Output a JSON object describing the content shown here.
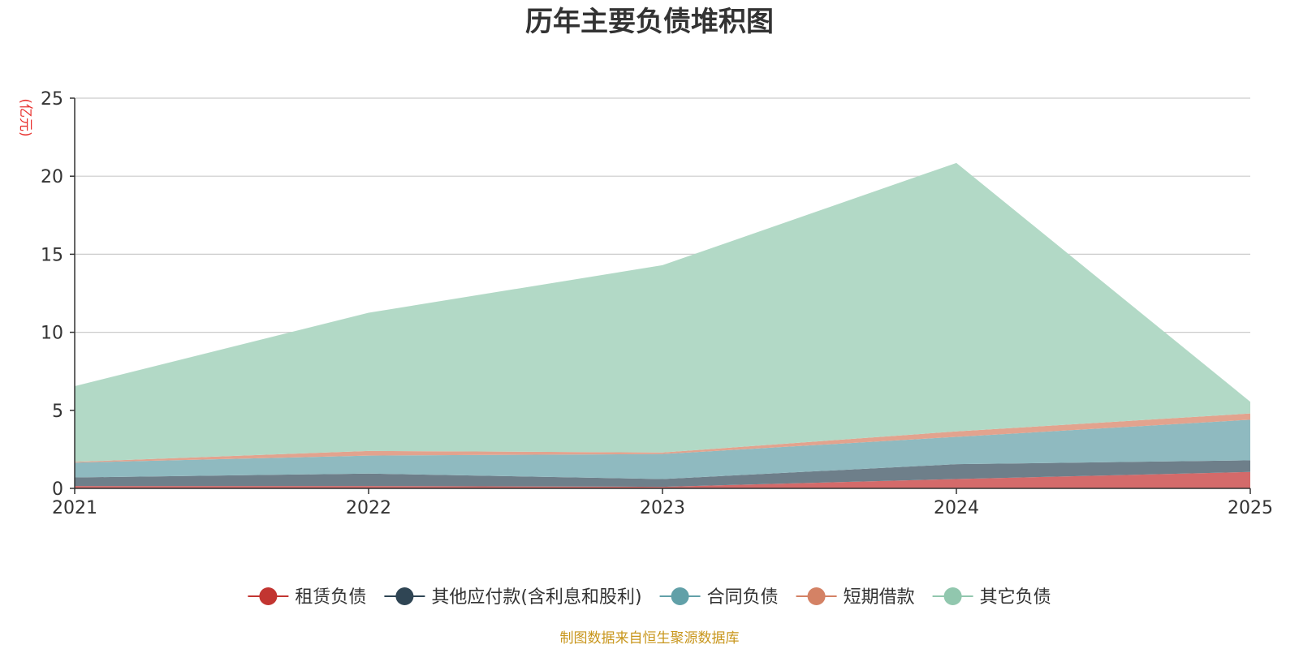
{
  "chart_data": {
    "type": "area",
    "stacked": true,
    "title": "历年主要负债堆积图",
    "y_unit": "(亿元)",
    "x": [
      "2021",
      "2022",
      "2023",
      "2024",
      "2025"
    ],
    "ylim": [
      0,
      25
    ],
    "yticks": [
      0,
      5,
      10,
      15,
      20,
      25
    ],
    "grid": true,
    "legend_position": "bottom",
    "series": [
      {
        "name": "租赁负债",
        "color": "#c23531",
        "fill": "#d46a6a",
        "values": [
          0.15,
          0.15,
          0.1,
          0.6,
          1.05
        ]
      },
      {
        "name": "其他应付款(含利息和股利)",
        "color": "#2f4554",
        "fill": "#6e7f8a",
        "values": [
          0.55,
          0.8,
          0.5,
          0.95,
          0.75
        ]
      },
      {
        "name": "合同负债",
        "color": "#61a0a8",
        "fill": "#8fbac0",
        "values": [
          0.95,
          1.15,
          1.6,
          1.75,
          2.6
        ]
      },
      {
        "name": "短期借款",
        "color": "#d48265",
        "fill": "#e2a38e",
        "values": [
          0.05,
          0.3,
          0.1,
          0.35,
          0.4
        ]
      },
      {
        "name": "其它负债",
        "color": "#91c7ae",
        "fill": "#b2d9c6",
        "values": [
          4.85,
          8.85,
          12.0,
          17.2,
          0.75
        ]
      }
    ]
  },
  "source_note": "制图数据来自恒生聚源数据库"
}
